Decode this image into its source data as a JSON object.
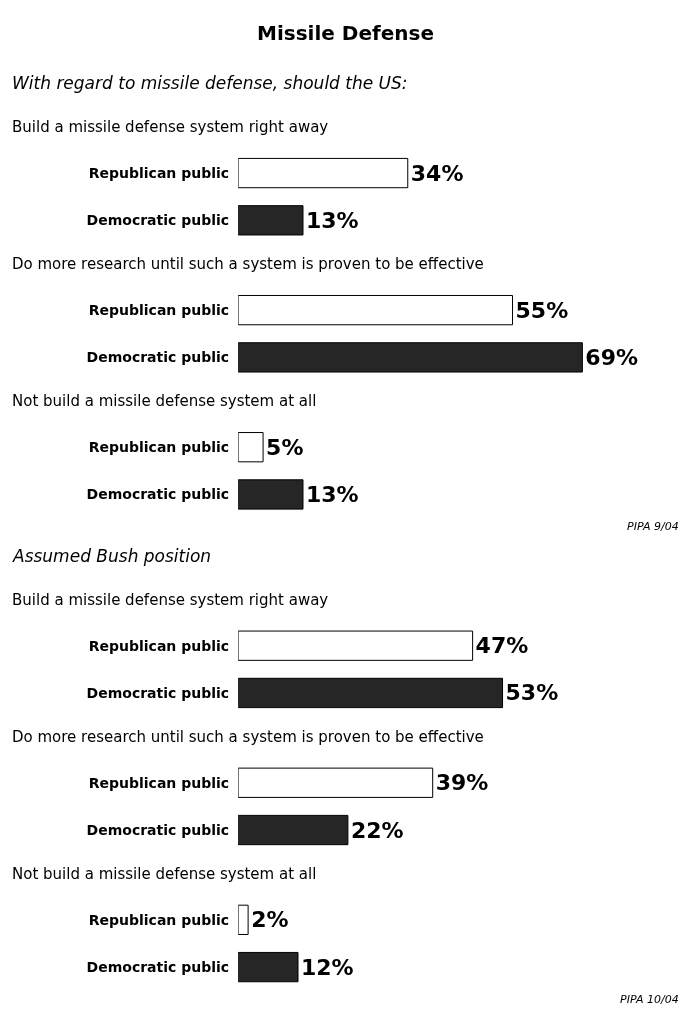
{
  "chart_data": [
    {
      "type": "other",
      "title": "Missile Defense",
      "subtitle": "With regard to missile defense, should the US:"
    },
    {
      "type": "bar",
      "orientation": "horizontal",
      "title": "Build a missile defense system right away",
      "categories": [
        "Republican public",
        "Democratic public"
      ],
      "values": [
        34,
        13
      ],
      "colors": [
        "#ffffff",
        "#262626"
      ],
      "value_labels": [
        "34%",
        "13%"
      ],
      "tick_labels": "y"
    },
    {
      "type": "bar",
      "orientation": "horizontal",
      "title": "Do more research until such a system is proven to be effective",
      "categories": [
        "Republican public",
        "Democratic public"
      ],
      "values": [
        55,
        69
      ],
      "colors": [
        "#ffffff",
        "#262626"
      ],
      "value_labels": [
        "55%",
        "69%"
      ],
      "tick_labels": "y"
    },
    {
      "type": "bar",
      "orientation": "horizontal",
      "title": "Not build a missile defense system at all",
      "categories": [
        "Republican public",
        "Democratic public"
      ],
      "values": [
        5,
        13
      ],
      "colors": [
        "#ffffff",
        "#262626"
      ],
      "value_labels": [
        "5%",
        "13%"
      ],
      "tick_labels": "y",
      "annotations": [
        "PIPA 9/04"
      ]
    },
    {
      "type": "other",
      "subtitle": "Assumed Bush position"
    },
    {
      "type": "bar",
      "orientation": "horizontal",
      "title": "Build a missile defense system right away",
      "categories": [
        "Republican public",
        "Democratic public"
      ],
      "values": [
        47,
        53
      ],
      "colors": [
        "#ffffff",
        "#262626"
      ],
      "value_labels": [
        "47%",
        "53%"
      ],
      "tick_labels": "y"
    },
    {
      "type": "bar",
      "orientation": "horizontal",
      "title": "Do more research until such a system is proven to be effective",
      "categories": [
        "Republican public",
        "Democratic public"
      ],
      "values": [
        39,
        22
      ],
      "colors": [
        "#ffffff",
        "#262626"
      ],
      "value_labels": [
        "39%",
        "22%"
      ],
      "tick_labels": "y"
    },
    {
      "type": "bar",
      "orientation": "horizontal",
      "title": "Not build a missile defense system at all",
      "categories": [
        "Republican public",
        "Democratic public"
      ],
      "values": [
        2,
        12
      ],
      "colors": [
        "#ffffff",
        "#262626"
      ],
      "value_labels": [
        "2%",
        "12%"
      ],
      "tick_labels": "y",
      "annotations": [
        "PIPA 10/04"
      ]
    }
  ]
}
